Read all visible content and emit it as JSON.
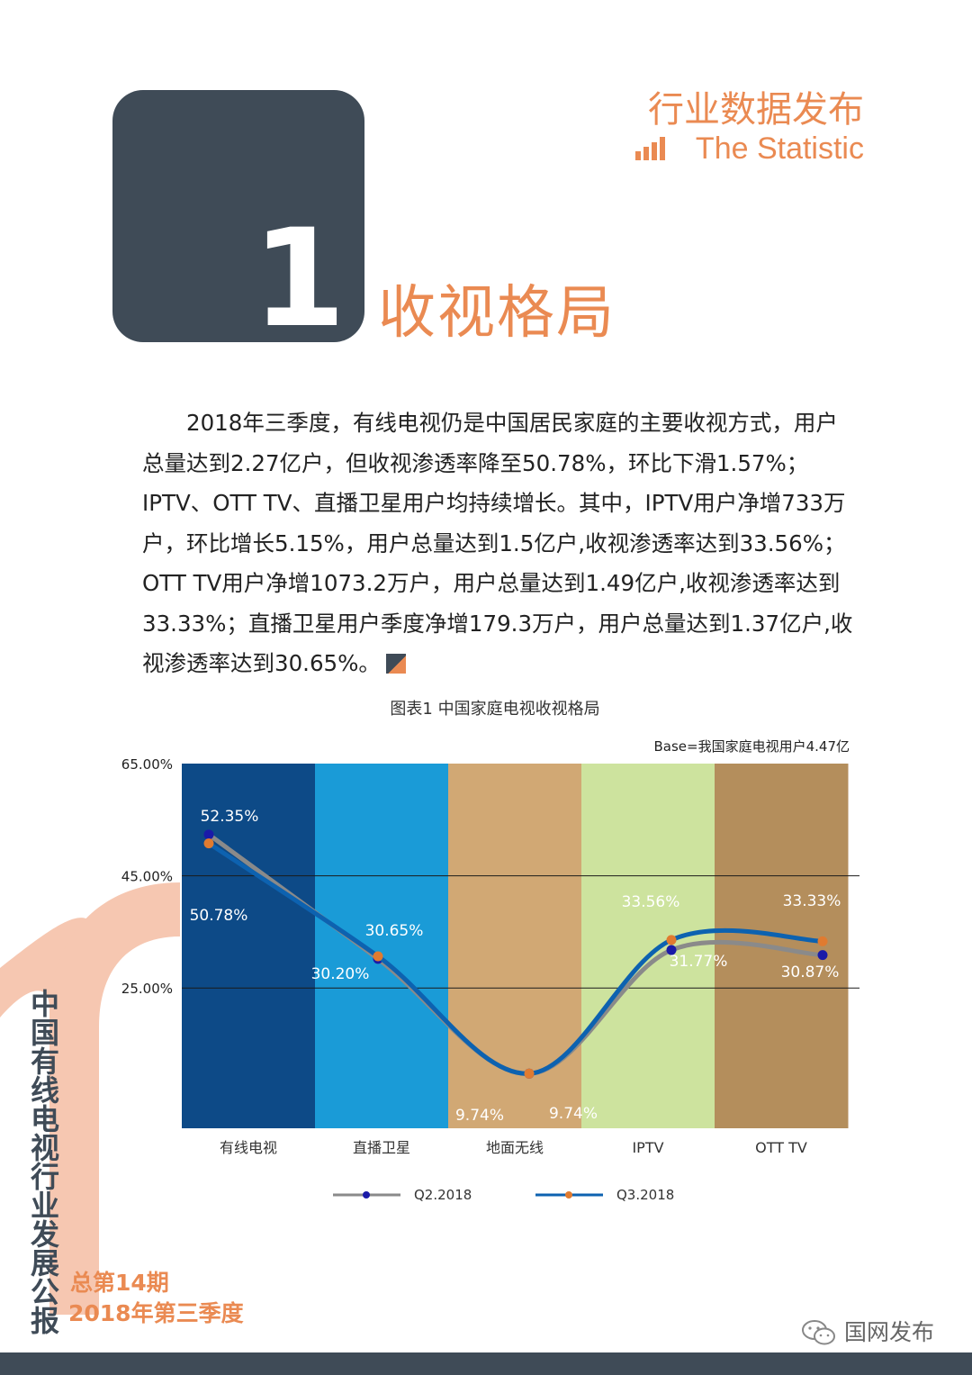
{
  "header": {
    "title_cn": "行业数据发布",
    "title_en": "The Statistic"
  },
  "section": {
    "number": "1",
    "title": "收视格局"
  },
  "body": {
    "paragraph": "2018年三季度，有线电视仍是中国居民家庭的主要收视方式，用户总量达到2.27亿户，但收视渗透率降至50.78%，环比下滑1.57%；IPTV、OTT TV、直播卫星用户均持续增长。其中，IPTV用户净增733万户，环比增长5.15%，用户总量达到1.5亿户,收视渗透率达到33.56%；OTT TV用户净增1073.2万户，用户总量达到1.49亿户,收视渗透率达到33.33%；直播卫星用户季度净增179.3万户，用户总量达到1.37亿户,收视渗透率达到30.65%。"
  },
  "chart_data": {
    "type": "line",
    "title": "图表1 中国家庭电视收视格局",
    "note": "Base=我国家庭电视用户4.47亿",
    "categories": [
      "有线电视",
      "直播卫星",
      "地面无线",
      "IPTV",
      "OTT TV"
    ],
    "ylim": [
      0,
      65
    ],
    "yticks": [
      "65.00%",
      "45.00%",
      "25.00%"
    ],
    "ytick_values": [
      65,
      45,
      25
    ],
    "series": [
      {
        "name": "Q2.2018",
        "values": [
          52.35,
          30.2,
          9.74,
          31.77,
          30.87
        ],
        "labels": [
          "52.35%",
          "30.20%",
          "9.74%",
          "31.77%",
          "30.87%"
        ],
        "color": "#8a8a8a",
        "marker": "#1a1aa8"
      },
      {
        "name": "Q3.2018",
        "values": [
          50.78,
          30.65,
          9.74,
          33.56,
          33.33
        ],
        "labels": [
          "50.78%",
          "30.65%",
          "9.74%",
          "33.56%",
          "33.33%"
        ],
        "color": "#0d62b0",
        "marker": "#e07b30"
      }
    ],
    "band_colors": [
      "#0d4a87",
      "#1a9bd7",
      "#d1a874",
      "#cde39e",
      "#b48e5c"
    ],
    "grid": true,
    "legend_position": "bottom"
  },
  "sidebar": {
    "vertical_title": "中国有线电视行业发展公报",
    "issue": "总第14期",
    "period": "2018年第三季度"
  },
  "footer": {
    "wechat": "国网发布"
  },
  "colors": {
    "accent": "#ea8a52",
    "dark": "#3f4b57"
  }
}
